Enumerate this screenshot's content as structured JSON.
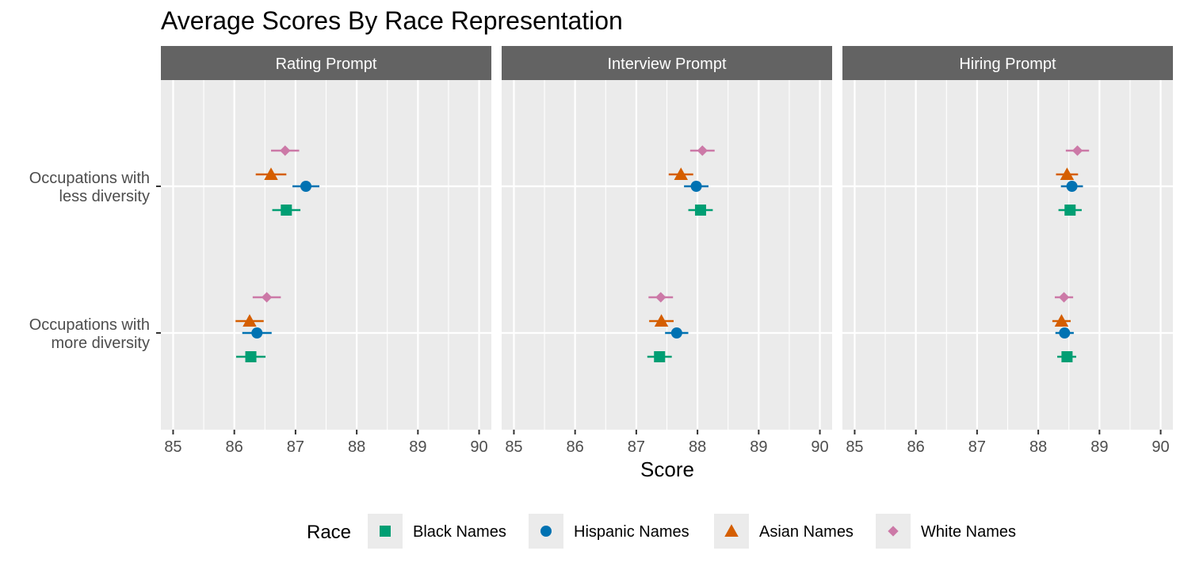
{
  "chart_data": {
    "type": "scatter",
    "title": "Average Scores By Race Representation",
    "xlabel": "Score",
    "ylabel": "",
    "xlim": [
      84.8,
      90.2
    ],
    "xticks": [
      "85",
      "86",
      "87",
      "88",
      "89",
      "90"
    ],
    "grid": true,
    "legend_position": "bottom",
    "legend_title": "Race",
    "facets": [
      "Rating Prompt",
      "Interview Prompt",
      "Hiring Prompt"
    ],
    "categories": [
      "Occupations with less diversity",
      "Occupations with more diversity"
    ],
    "category_lines": [
      [
        "Occupations with",
        "less diversity"
      ],
      [
        "Occupations with",
        "more diversity"
      ]
    ],
    "series": [
      {
        "name": "Black Names",
        "color": "#009E73",
        "shape": "square",
        "values": [
          [
            {
              "score": 86.85,
              "lo": 86.62,
              "hi": 87.08
            },
            {
              "score": 86.27,
              "lo": 86.03,
              "hi": 86.51
            }
          ],
          [
            {
              "score": 88.05,
              "lo": 87.85,
              "hi": 88.25
            },
            {
              "score": 87.38,
              "lo": 87.18,
              "hi": 87.58
            }
          ],
          [
            {
              "score": 88.52,
              "lo": 88.33,
              "hi": 88.71
            },
            {
              "score": 88.47,
              "lo": 88.31,
              "hi": 88.62
            }
          ]
        ]
      },
      {
        "name": "Hispanic Names",
        "color": "#0072B2",
        "shape": "circle",
        "values": [
          [
            {
              "score": 87.17,
              "lo": 86.95,
              "hi": 87.39
            },
            {
              "score": 86.37,
              "lo": 86.13,
              "hi": 86.61
            }
          ],
          [
            {
              "score": 87.98,
              "lo": 87.78,
              "hi": 88.18
            },
            {
              "score": 87.66,
              "lo": 87.47,
              "hi": 87.85
            }
          ],
          [
            {
              "score": 88.55,
              "lo": 88.37,
              "hi": 88.73
            },
            {
              "score": 88.43,
              "lo": 88.28,
              "hi": 88.58
            }
          ]
        ]
      },
      {
        "name": "Asian Names",
        "color": "#D55E00",
        "shape": "triangle",
        "values": [
          [
            {
              "score": 86.6,
              "lo": 86.35,
              "hi": 86.85
            },
            {
              "score": 86.25,
              "lo": 86.02,
              "hi": 86.48
            }
          ],
          [
            {
              "score": 87.73,
              "lo": 87.53,
              "hi": 87.93
            },
            {
              "score": 87.41,
              "lo": 87.21,
              "hi": 87.61
            }
          ],
          [
            {
              "score": 88.47,
              "lo": 88.29,
              "hi": 88.65
            },
            {
              "score": 88.38,
              "lo": 88.23,
              "hi": 88.53
            }
          ]
        ]
      },
      {
        "name": "White Names",
        "color": "#CC79A7",
        "shape": "diamond",
        "values": [
          [
            {
              "score": 86.83,
              "lo": 86.6,
              "hi": 87.06
            },
            {
              "score": 86.53,
              "lo": 86.3,
              "hi": 86.76
            }
          ],
          [
            {
              "score": 88.08,
              "lo": 87.88,
              "hi": 88.28
            },
            {
              "score": 87.4,
              "lo": 87.2,
              "hi": 87.6
            }
          ],
          [
            {
              "score": 88.64,
              "lo": 88.45,
              "hi": 88.83
            },
            {
              "score": 88.42,
              "lo": 88.27,
              "hi": 88.57
            }
          ]
        ]
      }
    ]
  }
}
